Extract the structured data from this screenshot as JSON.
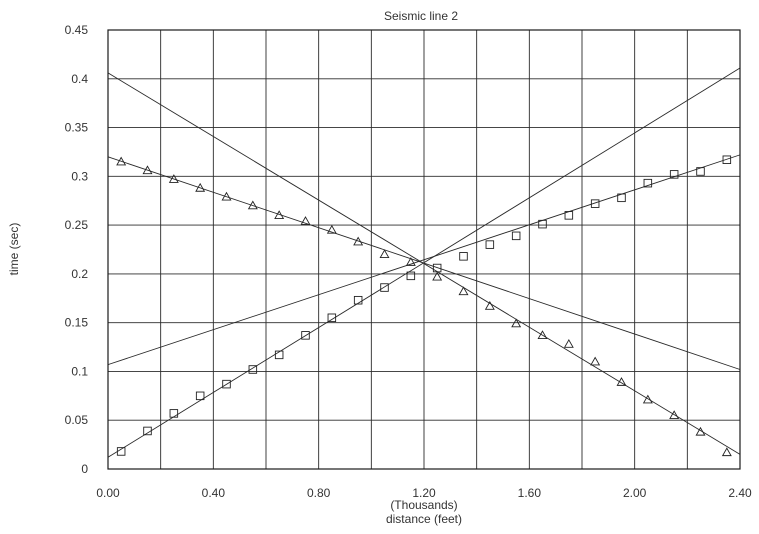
{
  "chart_data": {
    "type": "scatter",
    "title": "Seismic line 2",
    "xlabel": "distance (feet)",
    "xunit_label": "(Thousands)",
    "ylabel": "time (sec)",
    "xlim": [
      0.0,
      2.4
    ],
    "ylim": [
      0,
      0.45
    ],
    "x_ticks": [
      0.0,
      0.2,
      0.4,
      0.6,
      0.8,
      1.0,
      1.2,
      1.4,
      1.6,
      1.8,
      2.0,
      2.2,
      2.4
    ],
    "x_tick_labels": [
      "0.00",
      "",
      "0.40",
      "",
      "0.80",
      "",
      "1.20",
      "",
      "1.60",
      "",
      "2.00",
      "",
      "2.40"
    ],
    "y_ticks": [
      0,
      0.05,
      0.1,
      0.15,
      0.2,
      0.25,
      0.3,
      0.35,
      0.4,
      0.45
    ],
    "y_tick_labels": [
      "0",
      "0.05",
      "0.1",
      "0.15",
      "0.2",
      "0.25",
      "0.3",
      "0.35",
      "0.4",
      "0.45"
    ],
    "grid": true,
    "series": [
      {
        "marker": "triangle",
        "points": [
          [
            0.05,
            0.315
          ],
          [
            0.15,
            0.306
          ],
          [
            0.25,
            0.297
          ],
          [
            0.35,
            0.288
          ],
          [
            0.45,
            0.279
          ],
          [
            0.55,
            0.27
          ],
          [
            0.65,
            0.26
          ],
          [
            0.75,
            0.254
          ],
          [
            0.85,
            0.245
          ],
          [
            0.95,
            0.233
          ],
          [
            1.05,
            0.22
          ],
          [
            1.15,
            0.212
          ],
          [
            1.25,
            0.197
          ],
          [
            1.35,
            0.182
          ],
          [
            1.45,
            0.167
          ],
          [
            1.55,
            0.149
          ],
          [
            1.65,
            0.137
          ],
          [
            1.75,
            0.128
          ],
          [
            1.85,
            0.11
          ],
          [
            1.95,
            0.089
          ],
          [
            2.05,
            0.071
          ],
          [
            2.15,
            0.055
          ],
          [
            2.25,
            0.038
          ],
          [
            2.35,
            0.017
          ]
        ]
      },
      {
        "marker": "square",
        "points": [
          [
            0.05,
            0.018
          ],
          [
            0.15,
            0.039
          ],
          [
            0.25,
            0.057
          ],
          [
            0.35,
            0.075
          ],
          [
            0.45,
            0.087
          ],
          [
            0.55,
            0.102
          ],
          [
            0.65,
            0.117
          ],
          [
            0.75,
            0.137
          ],
          [
            0.85,
            0.155
          ],
          [
            0.95,
            0.173
          ],
          [
            1.05,
            0.186
          ],
          [
            1.15,
            0.198
          ],
          [
            1.25,
            0.206
          ],
          [
            1.35,
            0.218
          ],
          [
            1.45,
            0.23
          ],
          [
            1.55,
            0.239
          ],
          [
            1.65,
            0.251
          ],
          [
            1.75,
            0.26
          ],
          [
            1.85,
            0.272
          ],
          [
            1.95,
            0.278
          ],
          [
            2.05,
            0.293
          ],
          [
            2.15,
            0.302
          ],
          [
            2.25,
            0.305
          ],
          [
            2.35,
            0.317
          ]
        ]
      }
    ],
    "fit_lines": [
      {
        "x": [
          0.0,
          2.4
        ],
        "y": [
          0.32,
          0.102
        ]
      },
      {
        "x": [
          0.0,
          2.4
        ],
        "y": [
          0.406,
          0.015
        ]
      },
      {
        "x": [
          0.0,
          2.4
        ],
        "y": [
          0.107,
          0.322
        ]
      },
      {
        "x": [
          0.0,
          2.4
        ],
        "y": [
          0.012,
          0.411
        ]
      }
    ]
  }
}
